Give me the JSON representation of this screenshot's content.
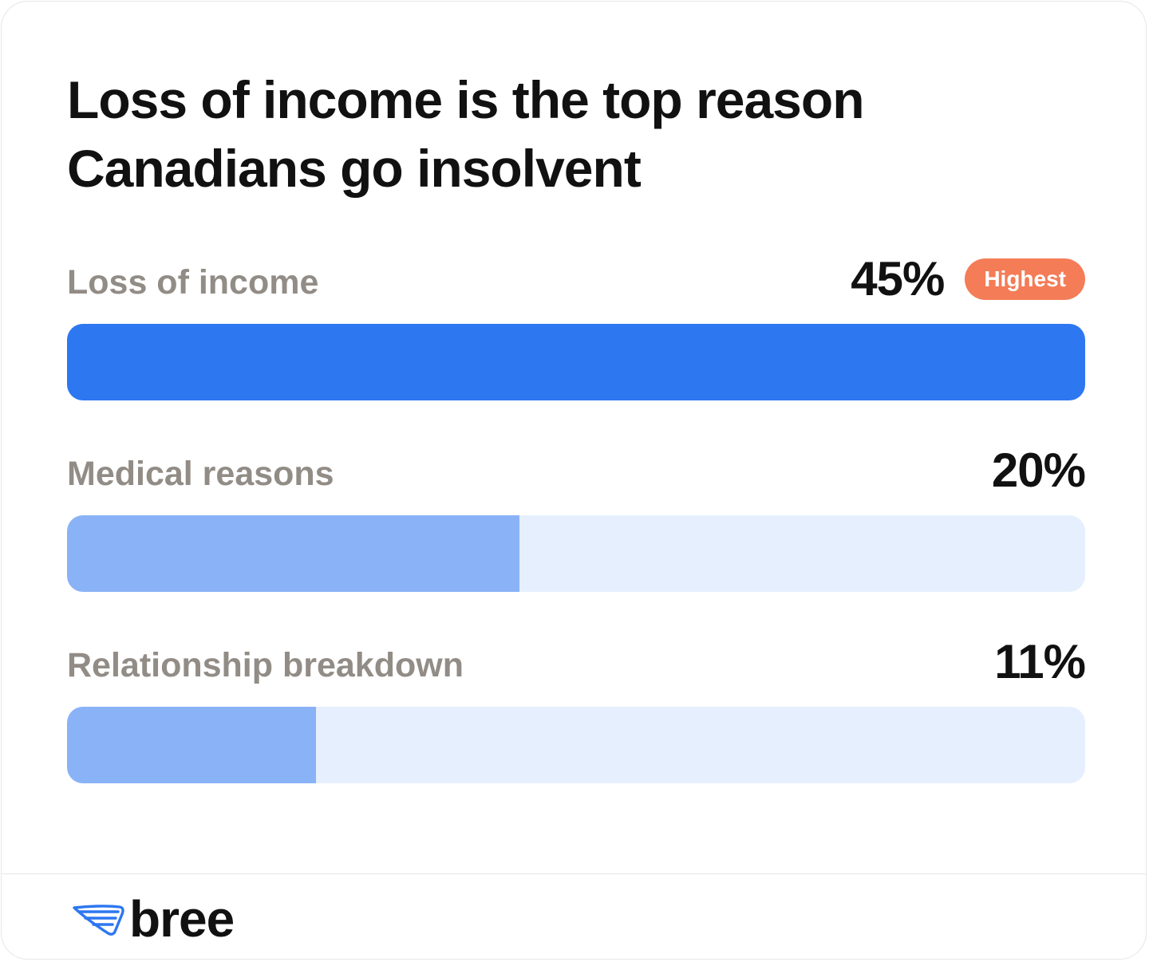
{
  "title": "Loss of income is the top reason Canadians go insolvent",
  "badge": {
    "text": "Highest",
    "color": "#f47c57"
  },
  "colors": {
    "highlight_bar": "#2d77f1",
    "regular_bar": "#8ab2f6",
    "track": "#e6effd",
    "logo_icon": "#2d77f1"
  },
  "logo": {
    "text": "bree",
    "icon": "wing-icon"
  },
  "chart_data": {
    "type": "bar",
    "orientation": "horizontal",
    "categories": [
      "Loss of income",
      "Medical reasons",
      "Relationship breakdown"
    ],
    "values": [
      45,
      20,
      11
    ],
    "value_labels": [
      "45%",
      "20%",
      "11%"
    ],
    "highlight_index": 0,
    "xlim": [
      0,
      45
    ],
    "title": "Loss of income is the top reason Canadians go insolvent"
  }
}
